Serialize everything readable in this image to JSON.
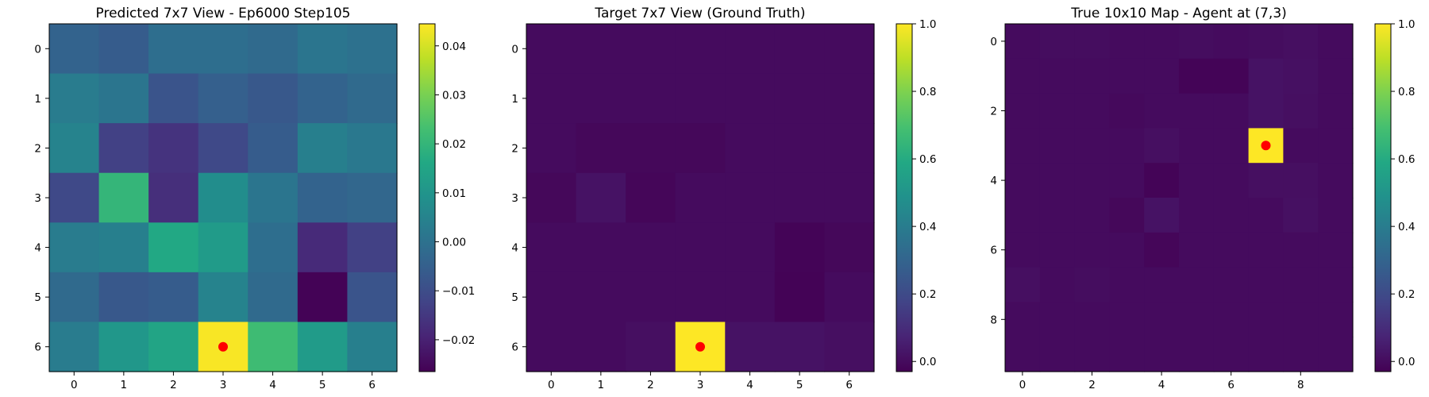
{
  "chart_data": [
    {
      "type": "heatmap",
      "title": "Predicted 7x7 View - Ep6000 Step105",
      "rows": 7,
      "cols": 7,
      "x_ticks": [
        "0",
        "1",
        "2",
        "3",
        "4",
        "5",
        "6"
      ],
      "y_ticks": [
        "0",
        "1",
        "2",
        "3",
        "4",
        "5",
        "6"
      ],
      "vmin": -0.0265,
      "vmax": 0.0445,
      "colorbar_ticks": [
        0.04,
        0.03,
        0.02,
        0.01,
        0.0,
        -0.01,
        -0.02
      ],
      "colorbar_tick_labels": [
        "0.04",
        "0.03",
        "0.02",
        "0.01",
        "0.00",
        "−0.01",
        "−0.02"
      ],
      "colormap": "viridis",
      "marker": {
        "x": 3,
        "y": 6,
        "color": "#ff0000"
      },
      "values": [
        [
          -0.004,
          -0.006,
          -0.001,
          -0.001,
          -0.002,
          0.001,
          0.0
        ],
        [
          0.003,
          0.001,
          -0.008,
          -0.005,
          -0.007,
          -0.004,
          -0.002
        ],
        [
          0.005,
          -0.013,
          -0.016,
          -0.011,
          -0.006,
          0.004,
          0.002
        ],
        [
          -0.011,
          0.02,
          -0.017,
          0.008,
          0.001,
          -0.004,
          -0.003
        ],
        [
          0.003,
          0.004,
          0.016,
          0.012,
          -0.001,
          -0.018,
          -0.013
        ],
        [
          -0.002,
          -0.007,
          -0.006,
          0.005,
          -0.002,
          -0.026,
          -0.008
        ],
        [
          0.003,
          0.011,
          0.015,
          0.044,
          0.022,
          0.012,
          0.004
        ]
      ]
    },
    {
      "type": "heatmap",
      "title": "Target 7x7 View (Ground Truth)",
      "rows": 7,
      "cols": 7,
      "x_ticks": [
        "0",
        "1",
        "2",
        "3",
        "4",
        "5",
        "6"
      ],
      "y_ticks": [
        "0",
        "1",
        "2",
        "3",
        "4",
        "5",
        "6"
      ],
      "vmin": -0.03,
      "vmax": 1.0,
      "colorbar_ticks": [
        1.0,
        0.8,
        0.6,
        0.4,
        0.2,
        0.0
      ],
      "colorbar_tick_labels": [
        "1.0",
        "0.8",
        "0.6",
        "0.4",
        "0.2",
        "0.0"
      ],
      "colormap": "viridis",
      "marker": {
        "x": 3,
        "y": 6,
        "color": "#ff0000"
      },
      "values": [
        [
          0.0,
          0.0,
          0.0,
          0.0,
          0.0,
          0.0,
          0.0
        ],
        [
          0.0,
          0.0,
          0.0,
          0.0,
          0.0,
          0.0,
          0.0
        ],
        [
          0.0,
          -0.01,
          -0.01,
          -0.01,
          0.0,
          0.0,
          0.0
        ],
        [
          -0.01,
          0.02,
          -0.015,
          0.0,
          0.0,
          0.0,
          0.0
        ],
        [
          0.0,
          0.0,
          0.0,
          0.0,
          0.0,
          -0.02,
          -0.01
        ],
        [
          0.0,
          0.0,
          0.0,
          0.0,
          0.0,
          -0.025,
          0.0
        ],
        [
          0.0,
          0.0,
          0.01,
          1.0,
          0.02,
          0.02,
          0.01
        ]
      ]
    },
    {
      "type": "heatmap",
      "title": "True 10x10 Map - Agent at (7,3)",
      "rows": 10,
      "cols": 10,
      "x_ticks": [
        "0",
        "2",
        "4",
        "6",
        "8"
      ],
      "y_ticks": [
        "0",
        "2",
        "4",
        "6",
        "8"
      ],
      "tick_step": 2,
      "vmin": -0.03,
      "vmax": 1.0,
      "colorbar_ticks": [
        1.0,
        0.8,
        0.6,
        0.4,
        0.2,
        0.0
      ],
      "colorbar_tick_labels": [
        "1.0",
        "0.8",
        "0.6",
        "0.4",
        "0.2",
        "0.0"
      ],
      "colormap": "viridis",
      "marker": {
        "x": 7,
        "y": 3,
        "color": "#ff0000"
      },
      "values": [
        [
          0.0,
          0.005,
          0.005,
          0.0,
          0.0,
          0.005,
          0.0,
          0.005,
          0.01,
          0.0
        ],
        [
          0.0,
          0.0,
          0.0,
          0.0,
          0.0,
          -0.02,
          -0.02,
          0.02,
          0.015,
          0.0
        ],
        [
          0.0,
          0.0,
          0.0,
          -0.005,
          0.0,
          0.0,
          0.0,
          0.02,
          0.01,
          0.0
        ],
        [
          0.0,
          0.0,
          0.0,
          0.0,
          0.01,
          0.0,
          0.0,
          1.0,
          0.0,
          0.0
        ],
        [
          0.0,
          0.0,
          0.0,
          0.0,
          -0.02,
          0.0,
          0.0,
          0.01,
          0.01,
          0.0
        ],
        [
          0.0,
          0.0,
          0.0,
          -0.01,
          0.02,
          0.0,
          0.0,
          0.0,
          0.015,
          0.0
        ],
        [
          0.0,
          0.0,
          0.0,
          0.0,
          -0.015,
          0.0,
          0.0,
          0.0,
          0.0,
          0.0
        ],
        [
          0.01,
          0.0,
          0.005,
          0.0,
          0.0,
          0.0,
          0.0,
          0.0,
          0.0,
          0.0
        ],
        [
          0.0,
          0.0,
          0.0,
          0.0,
          0.0,
          0.0,
          0.0,
          0.0,
          0.0,
          0.0
        ],
        [
          0.0,
          0.0,
          0.0,
          0.0,
          0.0,
          0.0,
          0.0,
          0.0,
          0.0,
          0.0
        ]
      ]
    }
  ]
}
